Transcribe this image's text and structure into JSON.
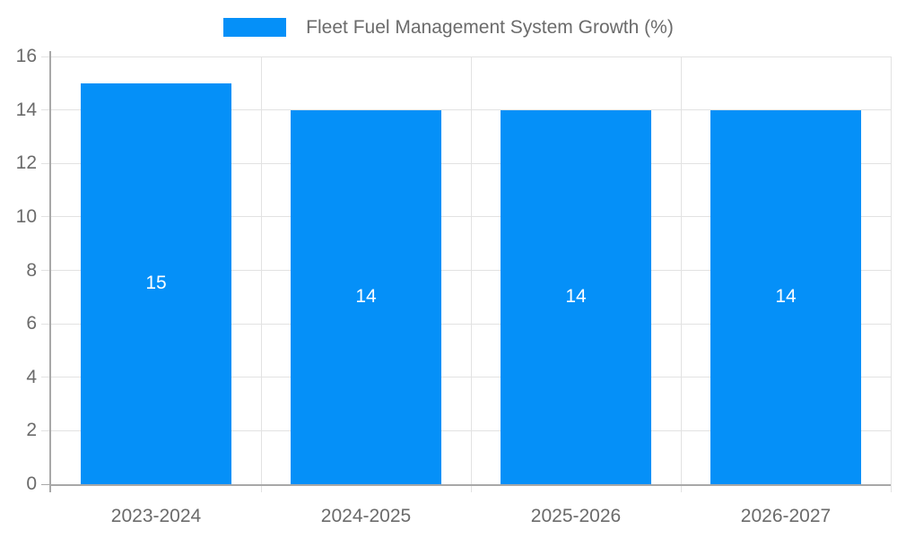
{
  "chart_data": {
    "type": "bar",
    "title": "Fleet Fuel Management System Growth (%)",
    "categories": [
      "2023-2024",
      "2024-2025",
      "2025-2026",
      "2026-2027"
    ],
    "values": [
      15,
      14,
      14,
      14
    ],
    "bar_value_labels": [
      "15",
      "14",
      "14",
      "14"
    ],
    "xlabel": "",
    "ylabel": "",
    "ylim": [
      0,
      16
    ],
    "yticks": [
      0,
      2,
      4,
      6,
      8,
      10,
      12,
      14,
      16
    ],
    "grid": true,
    "legend_position": "top",
    "colors": {
      "bar": "#0590f8",
      "bar_label_text": "#ffffff",
      "axis_text": "#6b6b6b",
      "grid_line": "#e2e2e2",
      "axis_line": "#a8a8a8"
    }
  }
}
